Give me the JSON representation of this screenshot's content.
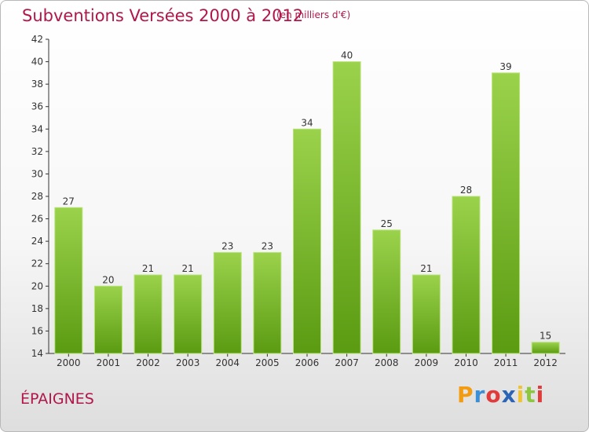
{
  "header": {
    "title": "Subventions Versées 2000 à 2012",
    "subtitle": "(en milliers d'€)"
  },
  "footer": {
    "commune": "ÉPAIGNES",
    "brand": "Proxiti"
  },
  "colors": {
    "bar_light": "#9bd24c",
    "bar_dark": "#5a9b12",
    "title": "#b0174a"
  },
  "chart_data": {
    "type": "bar",
    "title": "Subventions Versées 2000 à 2012",
    "categories": [
      "2000",
      "2001",
      "2002",
      "2003",
      "2004",
      "2005",
      "2006",
      "2007",
      "2008",
      "2009",
      "2010",
      "2011",
      "2012"
    ],
    "values": [
      27,
      20,
      21,
      21,
      23,
      23,
      34,
      40,
      25,
      21,
      28,
      39,
      15
    ],
    "ylim": [
      14,
      42
    ],
    "yticks": [
      14,
      16,
      18,
      20,
      22,
      24,
      26,
      28,
      30,
      32,
      34,
      36,
      38,
      40,
      42
    ],
    "grid": false,
    "legend": "none"
  }
}
